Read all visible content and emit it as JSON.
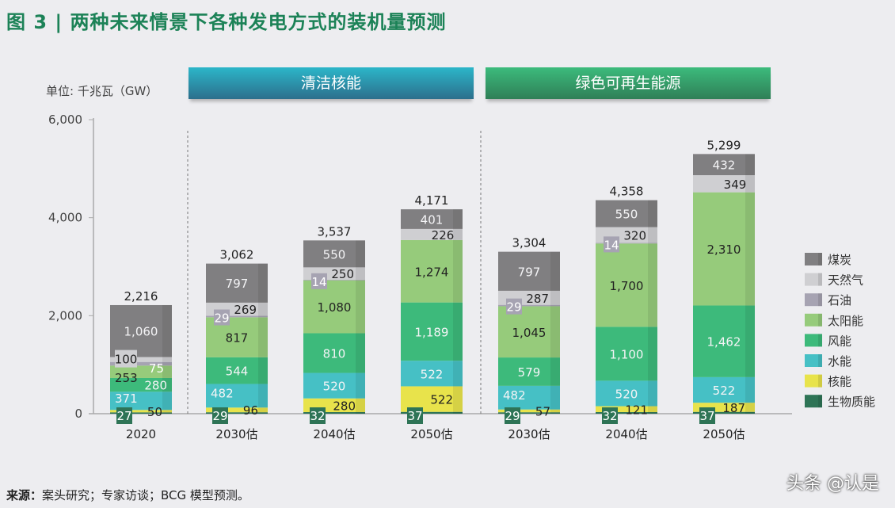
{
  "title": "图 3 | 两种未来情景下各种发电方式的装机量预测",
  "unit_label": "单位: 千兆瓦（GW）",
  "scenario_banners": [
    "清洁核能",
    "绿色可再生能源"
  ],
  "source_label": "来源：",
  "source_text": "案头研究；专家访谈；BCG 模型预测。",
  "watermark": "头条 @认是",
  "chart_data": {
    "type": "bar",
    "stacked": true,
    "ylabel": "单位: 千兆瓦（GW）",
    "ylim": [
      0,
      6000
    ],
    "yticks": [
      0,
      2000,
      4000,
      6000
    ],
    "ytick_labels": [
      "0",
      "2,000",
      "4,000",
      "6,000"
    ],
    "grid": false,
    "legend_position": "right",
    "categories": [
      "2020",
      "2030估",
      "2040估",
      "2050估",
      "2030估",
      "2040估",
      "2050估"
    ],
    "groups": [
      {
        "name": "清洁核能",
        "categories": [
          1,
          2,
          3
        ]
      },
      {
        "name": "绿色可再生能源",
        "categories": [
          4,
          5,
          6
        ]
      }
    ],
    "totals": [
      "2,216",
      "3,062",
      "3,537",
      "4,171",
      "3,304",
      "4,358",
      "5,299"
    ],
    "total_values": [
      2216,
      3062,
      3537,
      4171,
      3304,
      4358,
      5299
    ],
    "series": [
      {
        "name": "生物质能",
        "color": "#2e7456",
        "values": [
          27,
          29,
          32,
          37,
          29,
          32,
          37
        ]
      },
      {
        "name": "核能",
        "color": "#e8e34b",
        "values": [
          50,
          96,
          280,
          522,
          57,
          121,
          187
        ]
      },
      {
        "name": "水能",
        "color": "#46c0c5",
        "values": [
          371,
          482,
          520,
          522,
          482,
          520,
          522
        ]
      },
      {
        "name": "风能",
        "color": "#3dba7b",
        "values": [
          280,
          544,
          810,
          1189,
          579,
          1100,
          1462
        ]
      },
      {
        "name": "太阳能",
        "color": "#96cb7b",
        "values": [
          253,
          817,
          1080,
          1274,
          1045,
          1700,
          2310
        ]
      },
      {
        "name": "石油",
        "color": "#a6a3b2",
        "values": [
          75,
          29,
          14,
          0,
          29,
          14,
          0
        ]
      },
      {
        "name": "天然气",
        "color": "#cfcfd2",
        "values": [
          100,
          269,
          250,
          226,
          287,
          320,
          349
        ]
      },
      {
        "name": "煤炭",
        "color": "#807f81",
        "values": [
          1060,
          797,
          550,
          401,
          797,
          550,
          432
        ]
      }
    ],
    "legend_order": [
      "煤炭",
      "天然气",
      "石油",
      "太阳能",
      "风能",
      "水能",
      "核能",
      "生物质能"
    ]
  }
}
